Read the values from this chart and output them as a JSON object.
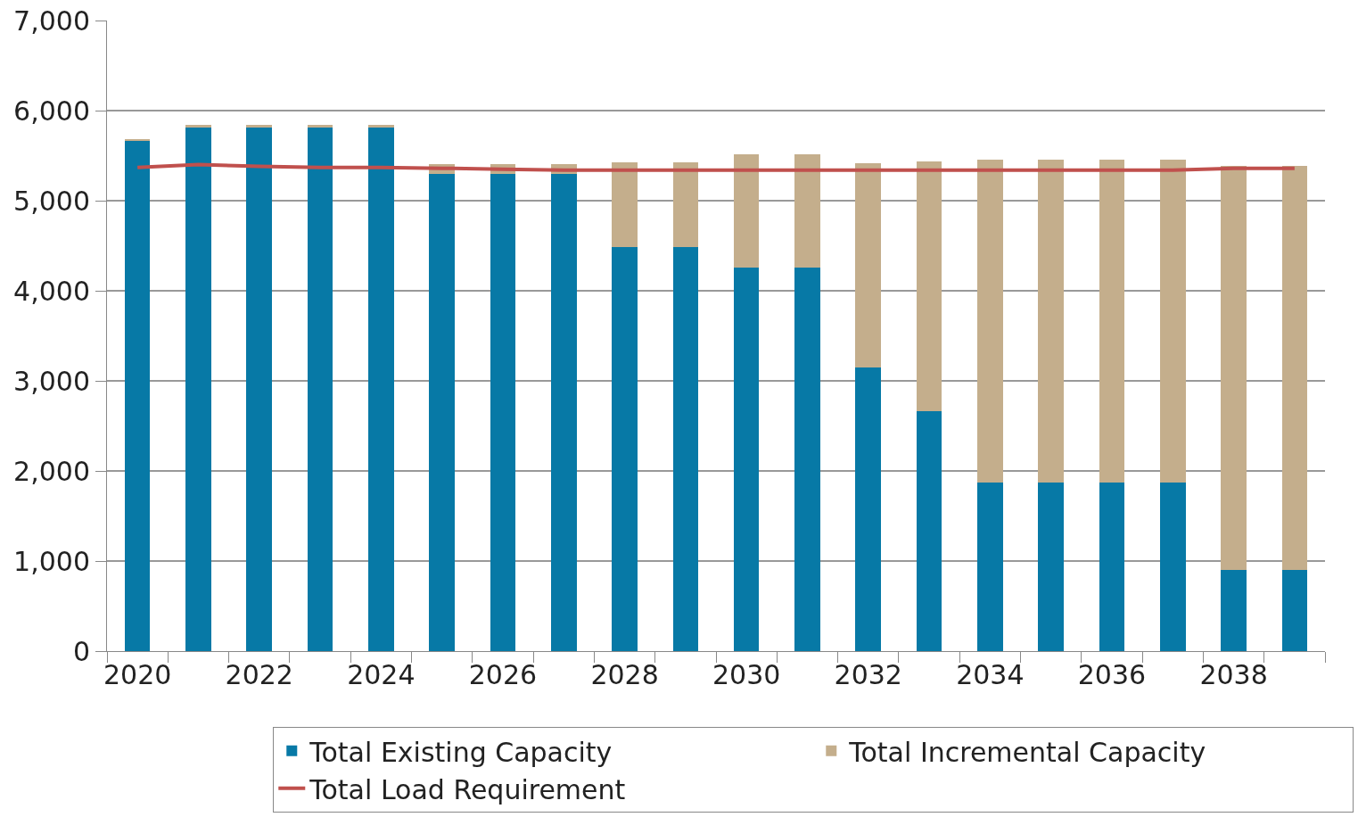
{
  "chart_data": {
    "type": "bar",
    "stacked": true,
    "categories": [
      "2020",
      null,
      "2022",
      null,
      "2024",
      null,
      "2026",
      null,
      "2028",
      null,
      "2030",
      null,
      "2032",
      null,
      "2034",
      null,
      "2036",
      null,
      "2038",
      null
    ],
    "series": [
      {
        "name": "Total Existing Capacity",
        "color": "#0779a6",
        "values": [
          5660,
          5810,
          5810,
          5810,
          5810,
          5300,
          5300,
          5300,
          4490,
          4490,
          4260,
          4260,
          3150,
          2660,
          1870,
          1870,
          1870,
          1870,
          900,
          900
        ]
      },
      {
        "name": "Total Incremental Capacity",
        "color": "#c4ae8c",
        "values": [
          20,
          30,
          30,
          30,
          30,
          110,
          110,
          110,
          940,
          940,
          1250,
          1250,
          2270,
          2780,
          3590,
          3590,
          3590,
          3590,
          4490,
          4490
        ]
      },
      {
        "name": "Total Load Requirement",
        "type": "line",
        "color": "#c0504d",
        "values": [
          5370,
          5400,
          5380,
          5370,
          5370,
          5360,
          5350,
          5340,
          5340,
          5340,
          5340,
          5340,
          5340,
          5340,
          5340,
          5340,
          5340,
          5340,
          5360,
          5360
        ]
      }
    ],
    "ylim": [
      0,
      7000
    ],
    "yticks": [
      0,
      {
        "value": 1000,
        "label": "1,000"
      },
      {
        "value": 2000,
        "label": "2,000"
      },
      {
        "value": 3000,
        "label": "3,000"
      },
      {
        "value": 4000,
        "label": "4,000"
      },
      {
        "value": 5000,
        "label": "5,000"
      },
      {
        "value": 6000,
        "label": "6,000"
      },
      {
        "value": 7000,
        "label": "7,000"
      }
    ],
    "grid": "y",
    "legend": "bottom"
  }
}
